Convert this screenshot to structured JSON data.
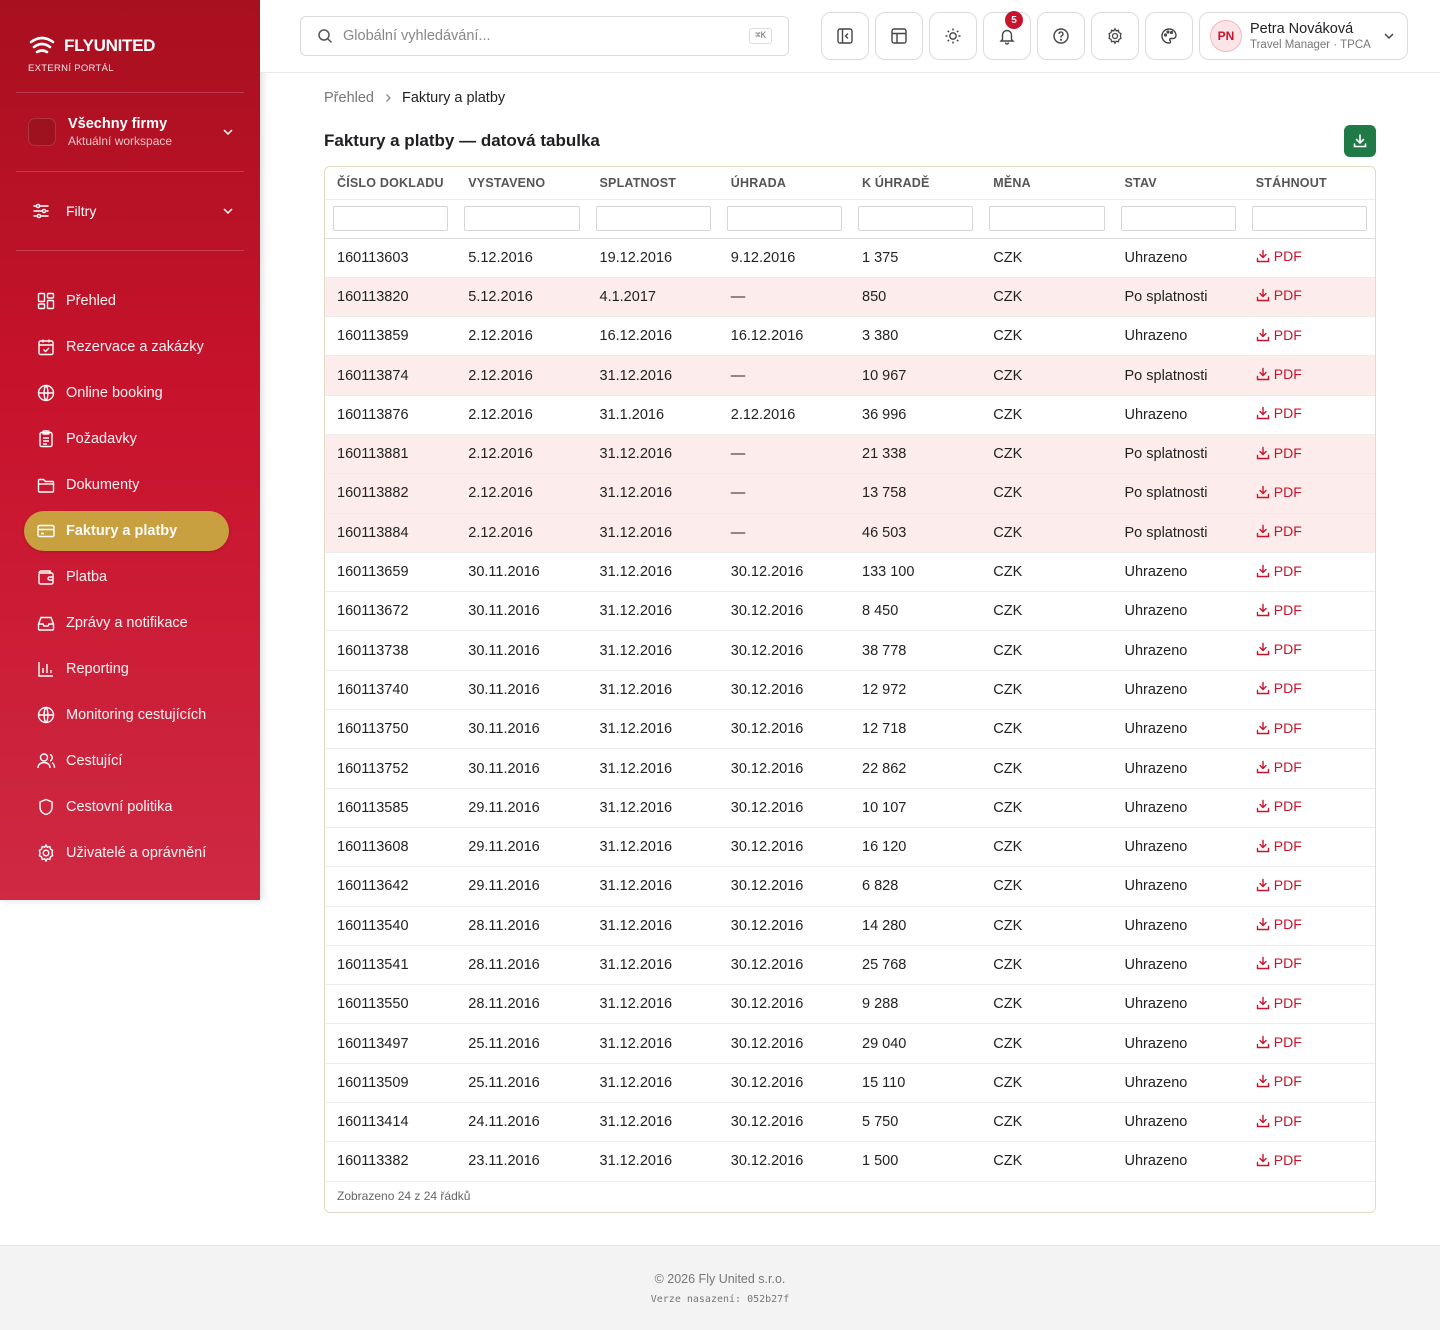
{
  "brand": {
    "name": "FLYUNITED",
    "subtitle": "EXTERNÍ PORTÁL"
  },
  "workspace": {
    "title": "Všechny firmy",
    "subtitle": "Aktuální workspace"
  },
  "filters_label": "Filtry",
  "nav": [
    {
      "label": "Přehled",
      "icon": "dashboard-icon"
    },
    {
      "label": "Rezervace a zakázky",
      "icon": "calendar-check-icon"
    },
    {
      "label": "Online booking",
      "icon": "globe-icon"
    },
    {
      "label": "Požadavky",
      "icon": "clipboard-icon"
    },
    {
      "label": "Dokumenty",
      "icon": "folder-icon"
    },
    {
      "label": "Faktury a platby",
      "icon": "credit-card-icon",
      "active": true
    },
    {
      "label": "Platba",
      "icon": "wallet-icon"
    },
    {
      "label": "Zprávy a notifikace",
      "icon": "inbox-icon"
    },
    {
      "label": "Reporting",
      "icon": "bar-chart-icon"
    },
    {
      "label": "Monitoring cestujících",
      "icon": "globe-icon"
    },
    {
      "label": "Cestující",
      "icon": "users-icon"
    },
    {
      "label": "Cestovní politika",
      "icon": "shield-icon"
    },
    {
      "label": "Uživatelé a oprávnění",
      "icon": "gear-icon"
    }
  ],
  "search": {
    "placeholder": "Globální vyhledávání...",
    "shortcut": "⌘K"
  },
  "notifications": {
    "count": "5"
  },
  "user": {
    "initials": "PN",
    "name": "Petra Nováková",
    "role": "Travel Manager · TPCA"
  },
  "breadcrumb": {
    "home": "Přehled",
    "current": "Faktury a platby"
  },
  "page_title": "Faktury a platby — datová tabulka",
  "table": {
    "columns": [
      "ČÍSLO DOKLADU",
      "VYSTAVENO",
      "SPLATNOST",
      "ÚHRADA",
      "K ÚHRADĚ",
      "MĚNA",
      "STAV",
      "STÁHNOUT"
    ],
    "pdf_label": "PDF",
    "rows": [
      [
        "160113603",
        "5.12.2016",
        "19.12.2016",
        "9.12.2016",
        "1 375",
        "CZK",
        "Uhrazeno"
      ],
      [
        "160113820",
        "5.12.2016",
        "4.1.2017",
        "—",
        "850",
        "CZK",
        "Po splatnosti"
      ],
      [
        "160113859",
        "2.12.2016",
        "16.12.2016",
        "16.12.2016",
        "3 380",
        "CZK",
        "Uhrazeno"
      ],
      [
        "160113874",
        "2.12.2016",
        "31.12.2016",
        "—",
        "10 967",
        "CZK",
        "Po splatnosti"
      ],
      [
        "160113876",
        "2.12.2016",
        "31.1.2016",
        "2.12.2016",
        "36 996",
        "CZK",
        "Uhrazeno"
      ],
      [
        "160113881",
        "2.12.2016",
        "31.12.2016",
        "—",
        "21 338",
        "CZK",
        "Po splatnosti"
      ],
      [
        "160113882",
        "2.12.2016",
        "31.12.2016",
        "—",
        "13 758",
        "CZK",
        "Po splatnosti"
      ],
      [
        "160113884",
        "2.12.2016",
        "31.12.2016",
        "—",
        "46 503",
        "CZK",
        "Po splatnosti"
      ],
      [
        "160113659",
        "30.11.2016",
        "31.12.2016",
        "30.12.2016",
        "133 100",
        "CZK",
        "Uhrazeno"
      ],
      [
        "160113672",
        "30.11.2016",
        "31.12.2016",
        "30.12.2016",
        "8 450",
        "CZK",
        "Uhrazeno"
      ],
      [
        "160113738",
        "30.11.2016",
        "31.12.2016",
        "30.12.2016",
        "38 778",
        "CZK",
        "Uhrazeno"
      ],
      [
        "160113740",
        "30.11.2016",
        "31.12.2016",
        "30.12.2016",
        "12 972",
        "CZK",
        "Uhrazeno"
      ],
      [
        "160113750",
        "30.11.2016",
        "31.12.2016",
        "30.12.2016",
        "12 718",
        "CZK",
        "Uhrazeno"
      ],
      [
        "160113752",
        "30.11.2016",
        "31.12.2016",
        "30.12.2016",
        "22 862",
        "CZK",
        "Uhrazeno"
      ],
      [
        "160113585",
        "29.11.2016",
        "31.12.2016",
        "30.12.2016",
        "10 107",
        "CZK",
        "Uhrazeno"
      ],
      [
        "160113608",
        "29.11.2016",
        "31.12.2016",
        "30.12.2016",
        "16 120",
        "CZK",
        "Uhrazeno"
      ],
      [
        "160113642",
        "29.11.2016",
        "31.12.2016",
        "30.12.2016",
        "6 828",
        "CZK",
        "Uhrazeno"
      ],
      [
        "160113540",
        "28.11.2016",
        "31.12.2016",
        "30.12.2016",
        "14 280",
        "CZK",
        "Uhrazeno"
      ],
      [
        "160113541",
        "28.11.2016",
        "31.12.2016",
        "30.12.2016",
        "25 768",
        "CZK",
        "Uhrazeno"
      ],
      [
        "160113550",
        "28.11.2016",
        "31.12.2016",
        "30.12.2016",
        "9 288",
        "CZK",
        "Uhrazeno"
      ],
      [
        "160113497",
        "25.11.2016",
        "31.12.2016",
        "30.12.2016",
        "29 040",
        "CZK",
        "Uhrazeno"
      ],
      [
        "160113509",
        "25.11.2016",
        "31.12.2016",
        "30.12.2016",
        "15 110",
        "CZK",
        "Uhrazeno"
      ],
      [
        "160113414",
        "24.11.2016",
        "31.12.2016",
        "30.12.2016",
        "5 750",
        "CZK",
        "Uhrazeno"
      ],
      [
        "160113382",
        "23.11.2016",
        "31.12.2016",
        "30.12.2016",
        "1 500",
        "CZK",
        "Uhrazeno"
      ]
    ],
    "footer": "Zobrazeno 24 z 24 řádků"
  },
  "footer": {
    "copyright": "© 2026 Fly United s.r.o.",
    "version": "Verze nasazení: 052b27f"
  },
  "colors": {
    "primary": "#c8132c",
    "accent": "#c9a040",
    "download": "#1f7a48",
    "overdue_row": "#fdecec"
  }
}
